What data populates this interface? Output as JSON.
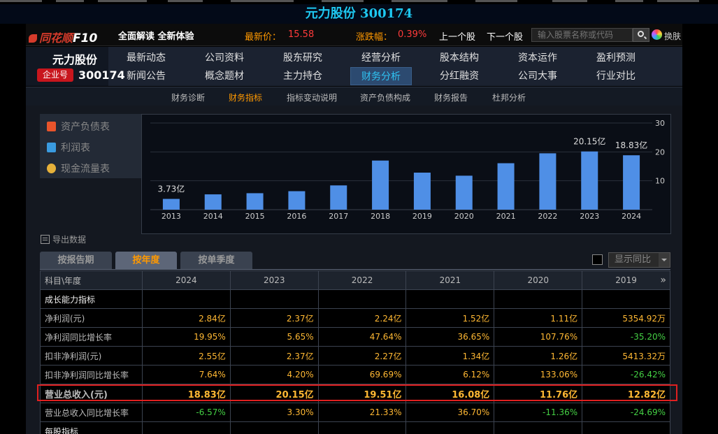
{
  "title": "元力股份 300174",
  "header": {
    "logo_text": "同花顺",
    "logo_f10": "F10",
    "slogan": "全面解读 全新体验",
    "latest_price_label": "最新价：",
    "latest_price": "15.58",
    "change_label": "涨跌幅：",
    "change": "0.39%",
    "prev_stock": "上一个股",
    "next_stock": "下一个股",
    "search_placeholder": "输入股票名称或代码",
    "skin_label": "换肤"
  },
  "stock": {
    "name": "元力股份",
    "badge": "企业号",
    "code": "300174"
  },
  "nav": {
    "row1": [
      "最新动态",
      "公司资料",
      "股东研究",
      "经营分析",
      "股本结构",
      "资本运作",
      "盈利预测"
    ],
    "row2": [
      "新闻公告",
      "概念题材",
      "主力持仓",
      "财务分析",
      "分红融资",
      "公司大事",
      "行业对比"
    ],
    "active": "财务分析"
  },
  "subnav": {
    "items": [
      "财务诊断",
      "财务指标",
      "指标变动说明",
      "资产负债构成",
      "财务报告",
      "杜邦分析"
    ],
    "active": "财务指标"
  },
  "left_menu": [
    "资产负债表",
    "利润表",
    "现金流量表"
  ],
  "chart_data": {
    "type": "bar",
    "categories": [
      "2013",
      "2014",
      "2015",
      "2016",
      "2017",
      "2018",
      "2019",
      "2020",
      "2021",
      "2022",
      "2023",
      "2024"
    ],
    "values": [
      3.73,
      5.3,
      5.7,
      6.4,
      8.4,
      17.0,
      12.82,
      11.76,
      16.08,
      19.51,
      20.15,
      18.83
    ],
    "data_labels": {
      "0": "3.73亿",
      "10": "20.15亿",
      "11": "18.83亿"
    },
    "y_ticks": [
      "10",
      "20",
      "30"
    ],
    "ylim": [
      0,
      30
    ],
    "bar_color": "#4f8fe6",
    "grid": true,
    "title": ""
  },
  "export_label": "导出数据",
  "tabs": [
    "按报告期",
    "按年度",
    "按单季度"
  ],
  "active_tab": "按年度",
  "yoy_label": "显示同比",
  "table": {
    "header_label": "科目\\年度",
    "years": [
      "2024",
      "2023",
      "2022",
      "2021",
      "2020",
      "2019"
    ],
    "rows": [
      {
        "label": "成长能力指标",
        "section": true,
        "values": [
          "",
          "",
          "",
          "",
          "",
          ""
        ]
      },
      {
        "label": "净利润(元)",
        "values": [
          "2.84亿",
          "2.37亿",
          "2.24亿",
          "1.52亿",
          "1.11亿",
          "5354.92万"
        ]
      },
      {
        "label": "净利润同比增长率",
        "values": [
          "19.95%",
          "5.65%",
          "47.64%",
          "36.65%",
          "107.76%",
          "-35.20%"
        ]
      },
      {
        "label": "扣非净利润(元)",
        "values": [
          "2.55亿",
          "2.37亿",
          "2.27亿",
          "1.34亿",
          "1.26亿",
          "5413.32万"
        ]
      },
      {
        "label": "扣非净利润同比增长率",
        "values": [
          "7.64%",
          "4.20%",
          "69.69%",
          "6.12%",
          "133.06%",
          "-26.42%"
        ]
      },
      {
        "label": "营业总收入(元)",
        "highlight": true,
        "values": [
          "18.83亿",
          "20.15亿",
          "19.51亿",
          "16.08亿",
          "11.76亿",
          "12.82亿"
        ]
      },
      {
        "label": "营业总收入同比增长率",
        "values": [
          "-6.57%",
          "3.30%",
          "21.33%",
          "36.70%",
          "-11.36%",
          "-24.69%"
        ]
      },
      {
        "label": "每股指标",
        "section": true,
        "values": [
          "",
          "",
          "",
          "",
          "",
          ""
        ]
      }
    ]
  },
  "colors": {
    "title": "#1ec8f0",
    "accent": "#ff9900",
    "price_up": "#ff3b3b",
    "value": "#ffb833",
    "negative": "#44d044",
    "highlight_border": "#e02020"
  }
}
